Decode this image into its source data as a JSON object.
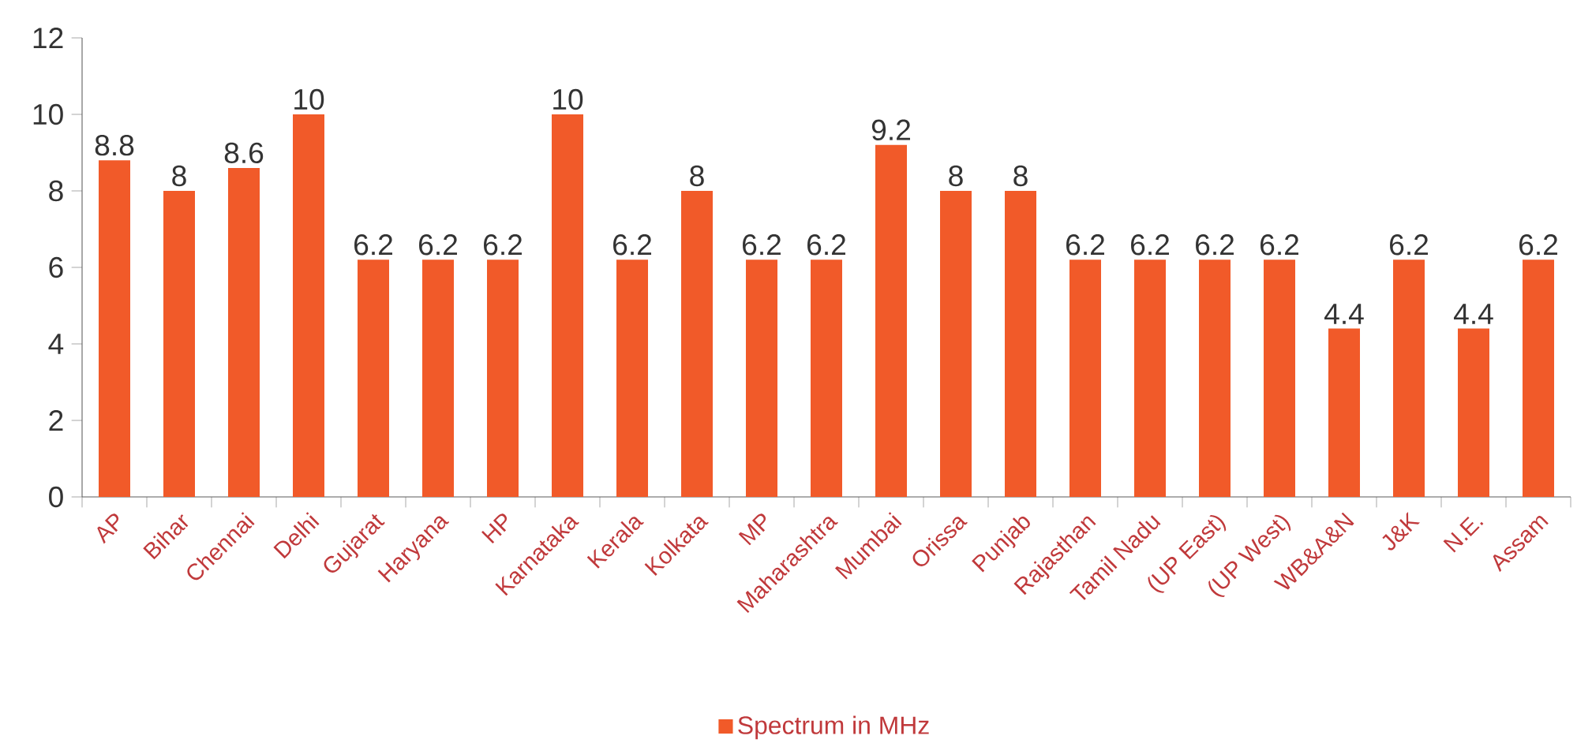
{
  "chart_data": {
    "type": "bar",
    "categories": [
      "AP",
      "Bihar",
      "Chennai",
      "Delhi",
      "Gujarat",
      "Haryana",
      "HP",
      "Karnataka",
      "Kerala",
      "Kolkata",
      "MP",
      "Maharashtra",
      "Mumbai",
      "Orissa",
      "Punjab",
      "Rajasthan",
      "Tamil Nadu",
      "(UP East)",
      "(UP West)",
      "WB&A&N",
      "J&K",
      "N.E.",
      "Assam"
    ],
    "series": [
      {
        "name": "Spectrum in MHz",
        "color": "#f15a29",
        "values": [
          8.8,
          8,
          8.6,
          10,
          6.2,
          6.2,
          6.2,
          10,
          6.2,
          8,
          6.2,
          6.2,
          9.2,
          8,
          8,
          6.2,
          6.2,
          6.2,
          6.2,
          4.4,
          6.2,
          4.4,
          6.2
        ]
      }
    ],
    "ylim": [
      0,
      12
    ],
    "yticks": [
      0,
      2,
      4,
      6,
      8,
      10,
      12
    ],
    "data_labels": true,
    "legend": "bottom",
    "grid": false
  }
}
